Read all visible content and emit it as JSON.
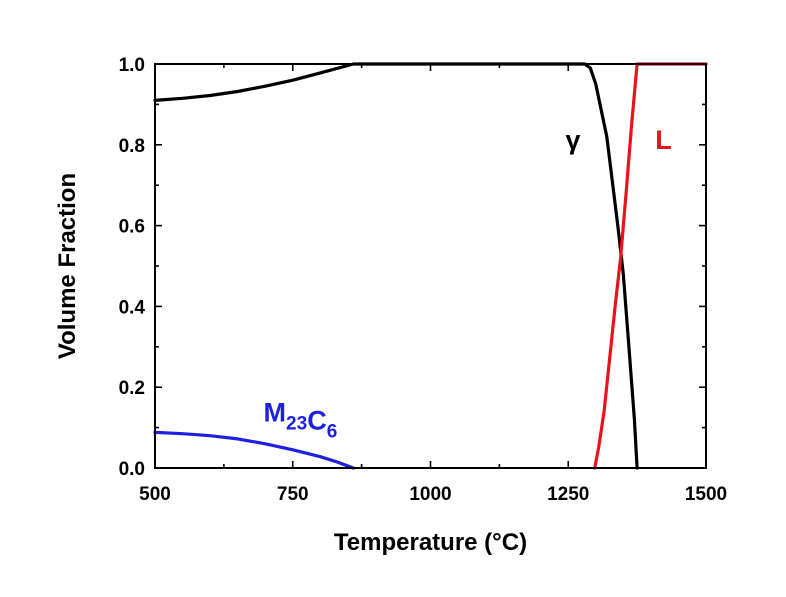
{
  "chart_data": {
    "type": "line",
    "xlabel": "Temperature (°C)",
    "ylabel": "Volume Fraction",
    "xlim": [
      500,
      1500
    ],
    "ylim": [
      0,
      1.0
    ],
    "xticks": [
      "500",
      "750",
      "1000",
      "1250",
      "1500"
    ],
    "yticks": [
      "0.0",
      "0.2",
      "0.4",
      "0.6",
      "0.8",
      "1.0"
    ],
    "grid": false,
    "series": [
      {
        "name": "γ",
        "color": "#000000",
        "label_parts": [
          {
            "text": "γ",
            "sub": ""
          }
        ],
        "points": [
          [
            500,
            0.91
          ],
          [
            550,
            0.915
          ],
          [
            600,
            0.922
          ],
          [
            650,
            0.932
          ],
          [
            700,
            0.945
          ],
          [
            750,
            0.96
          ],
          [
            800,
            0.978
          ],
          [
            860,
            1.0
          ],
          [
            1200,
            1.0
          ],
          [
            1280,
            1.0
          ],
          [
            1290,
            0.99
          ],
          [
            1300,
            0.95
          ],
          [
            1320,
            0.82
          ],
          [
            1340,
            0.6
          ],
          [
            1350,
            0.48
          ],
          [
            1360,
            0.3
          ],
          [
            1370,
            0.12
          ],
          [
            1375,
            0.0
          ]
        ]
      },
      {
        "name": "L",
        "color": "#e8141c",
        "label_parts": [
          {
            "text": "L",
            "sub": ""
          }
        ],
        "points": [
          [
            1298,
            0.0
          ],
          [
            1305,
            0.05
          ],
          [
            1315,
            0.14
          ],
          [
            1325,
            0.27
          ],
          [
            1335,
            0.4
          ],
          [
            1345,
            0.52
          ],
          [
            1355,
            0.68
          ],
          [
            1365,
            0.85
          ],
          [
            1375,
            1.0
          ],
          [
            1500,
            1.0
          ]
        ]
      },
      {
        "name": "M23C6",
        "color": "#1f1fe0",
        "label_parts": [
          {
            "text": "M",
            "sub": "23"
          },
          {
            "text": "C",
            "sub": "6"
          }
        ],
        "points": [
          [
            500,
            0.088
          ],
          [
            550,
            0.085
          ],
          [
            600,
            0.08
          ],
          [
            650,
            0.072
          ],
          [
            700,
            0.06
          ],
          [
            750,
            0.045
          ],
          [
            800,
            0.028
          ],
          [
            830,
            0.015
          ],
          [
            860,
            0.0
          ]
        ]
      }
    ]
  }
}
